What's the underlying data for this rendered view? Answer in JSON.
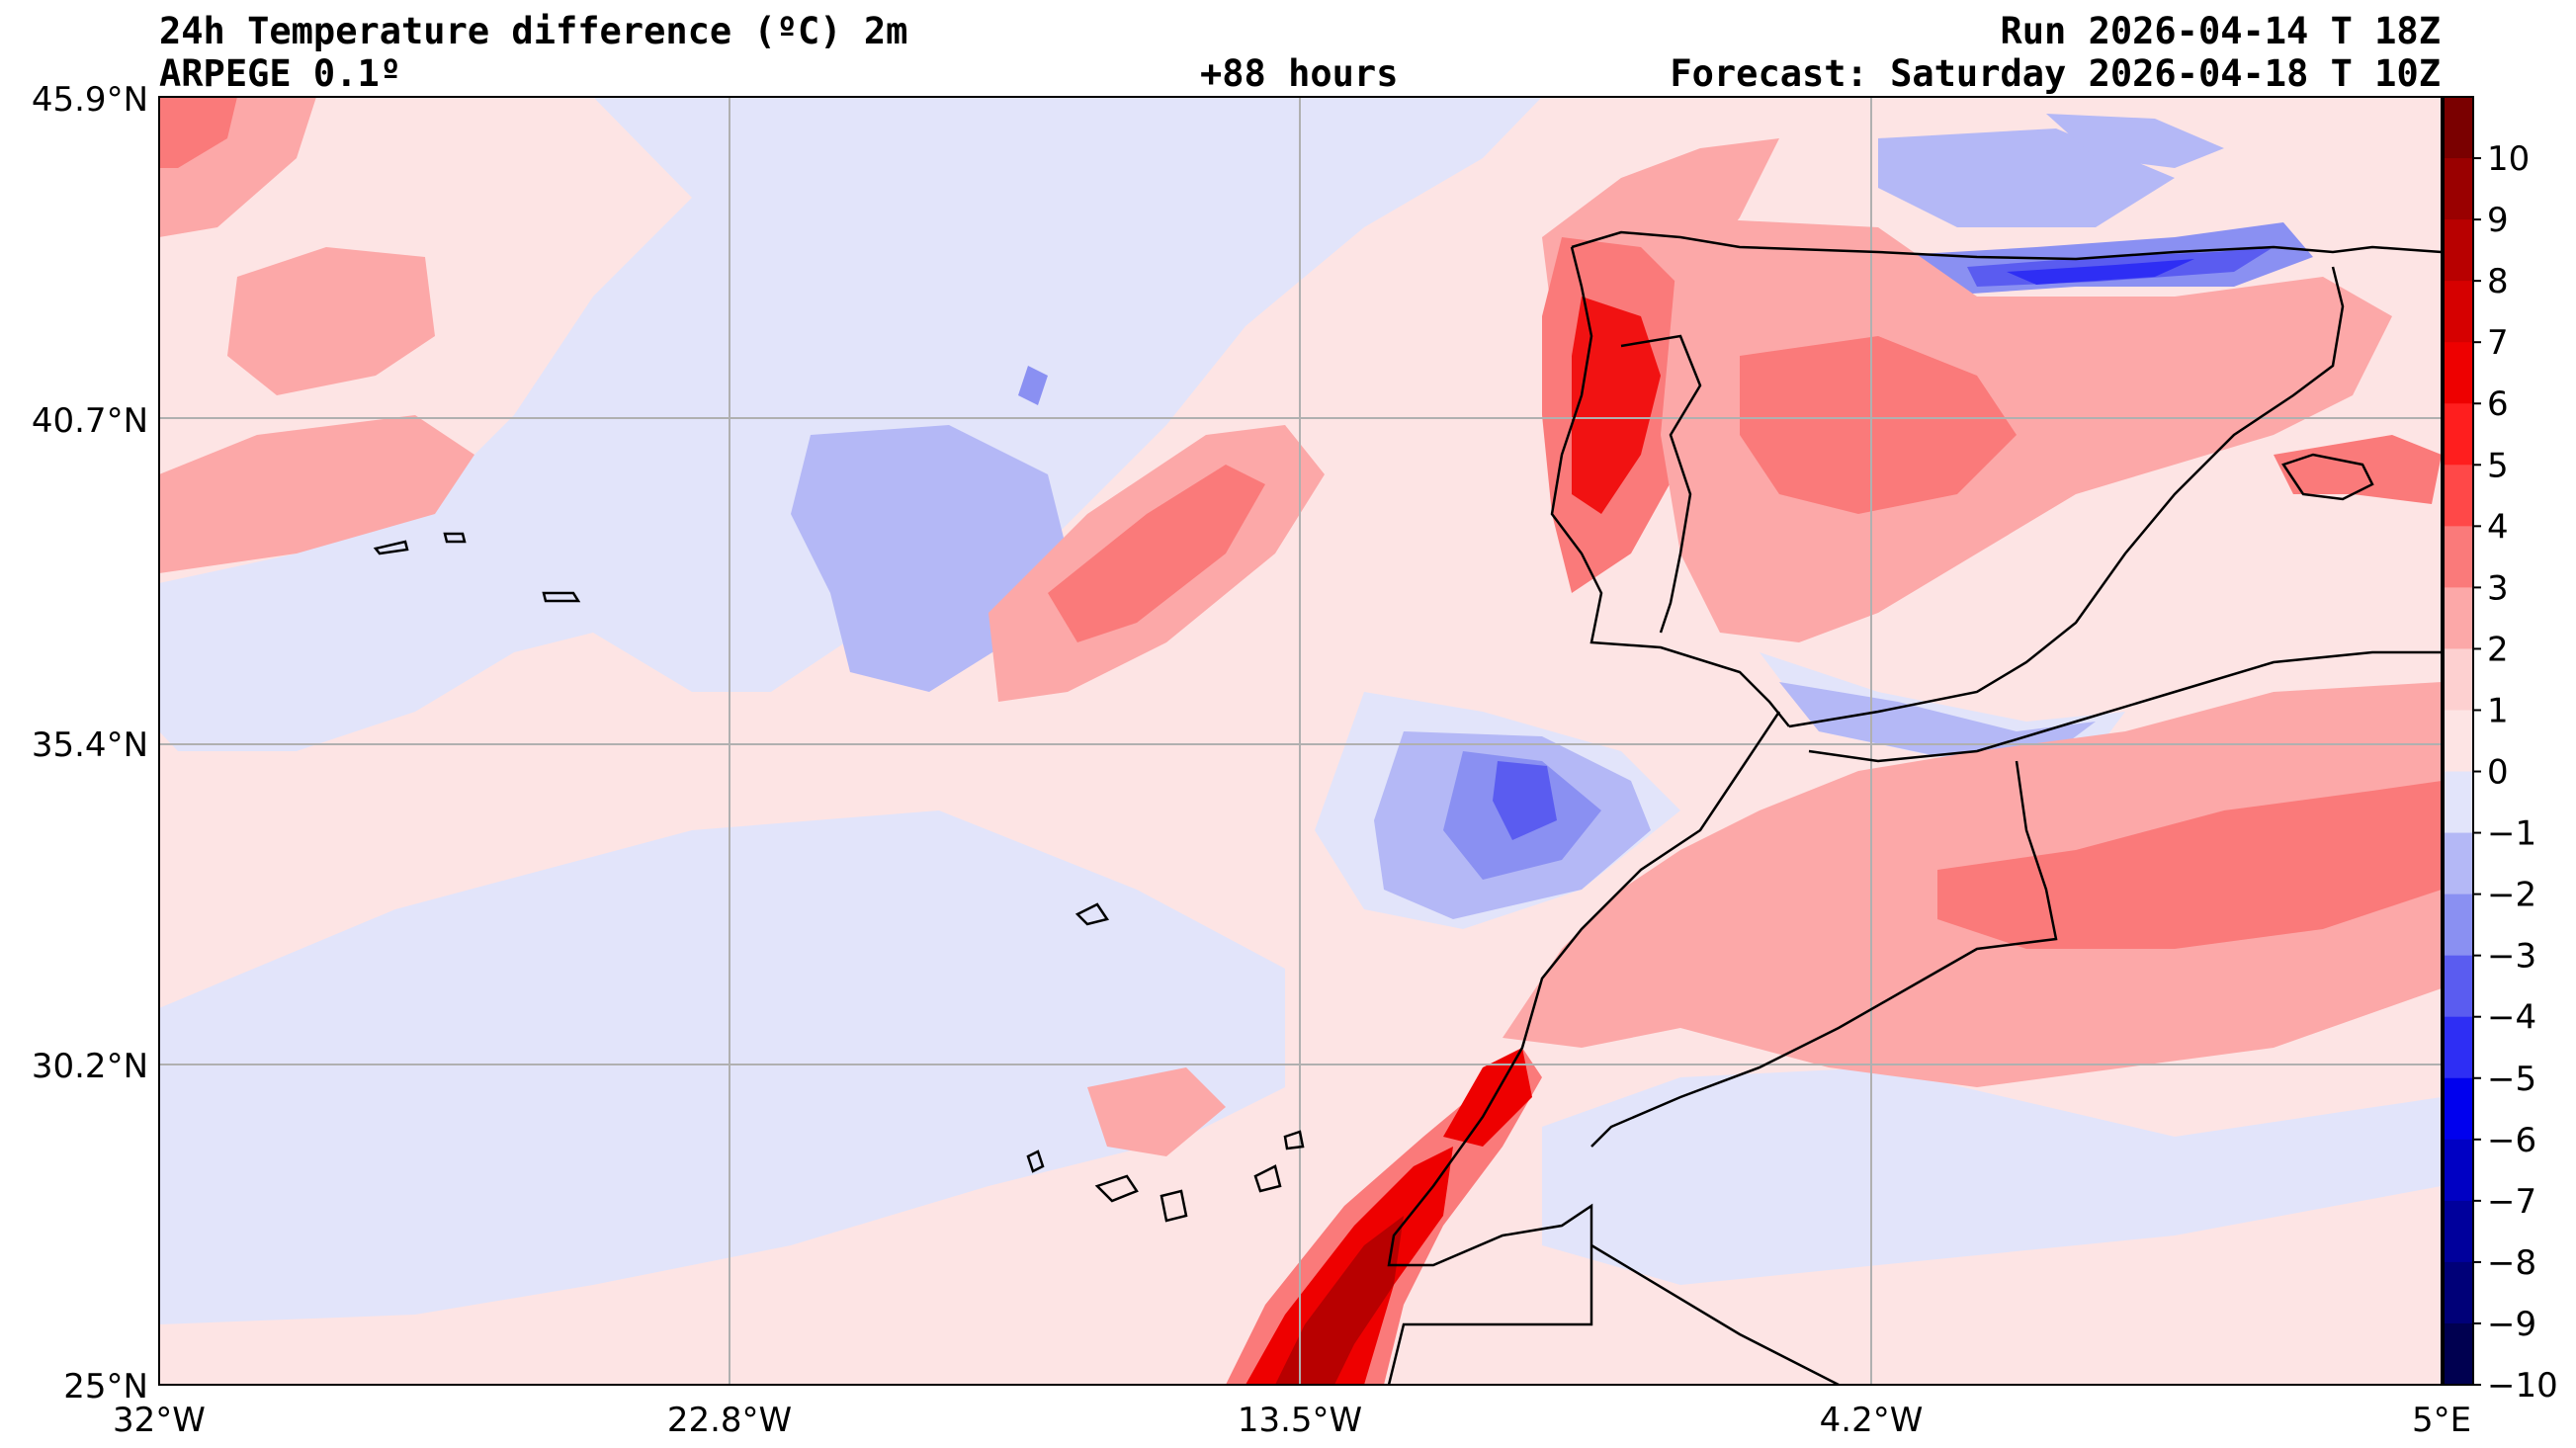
{
  "header": {
    "title": "24h Temperature difference (ºC) 2m",
    "model": "ARPEGE 0.1º",
    "lead_time": "+88 hours",
    "run": "Run 2026-04-14 T 18Z",
    "forecast": "Forecast: Saturday 2026-04-18 T 10Z"
  },
  "axes": {
    "lat_labels": [
      "45.9°N",
      "40.7°N",
      "35.4°N",
      "30.2°N",
      "25°N"
    ],
    "lon_labels": [
      "32°W",
      "22.8°W",
      "13.5°W",
      "4.2°W",
      "5°E"
    ]
  },
  "colorbar": {
    "labels": [
      "10",
      "9",
      "8",
      "7",
      "6",
      "5",
      "4",
      "3",
      "2",
      "1",
      "0",
      "−1",
      "−2",
      "−3",
      "−4",
      "−5",
      "−6",
      "−7",
      "−8",
      "−9",
      "−10"
    ],
    "colors": [
      "#7a0000",
      "#9a0000",
      "#b80000",
      "#d60000",
      "#ee0000",
      "#ff1e1e",
      "#ff4848",
      "#fa7a7a",
      "#fca8a8",
      "#fdd0d0",
      "#fde4e4",
      "#e2e4fa",
      "#b4b8f6",
      "#8a90f2",
      "#5a5cf0",
      "#2e2ef4",
      "#0000ee",
      "#0000c4",
      "#00009c",
      "#000078",
      "#000050"
    ]
  }
}
